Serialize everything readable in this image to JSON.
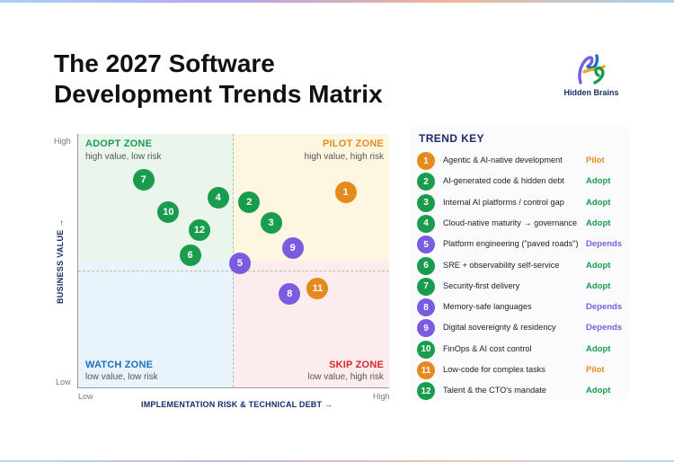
{
  "colors": {
    "adopt": "#1a9c4e",
    "pilot": "#e58a1f",
    "depends": "#7b5ce0",
    "navy": "#1b2a6b",
    "watch": "#1a6fc0",
    "skip": "#d8262f"
  },
  "title": {
    "line1_prefix": "The ",
    "line1_bold": "2027 Software",
    "line2_bold": "Development Trends",
    "line2_suffix": " Matrix"
  },
  "logo": {
    "text": "Hidden Brains"
  },
  "chart_data": {
    "type": "scatter",
    "xlabel": "IMPLEMENTATION RISK & TECHNICAL DEBT →",
    "ylabel": "BUSINESS VALUE →",
    "x_ticks": {
      "low": "Low",
      "high": "High"
    },
    "y_ticks": {
      "low": "Low",
      "high": "High"
    },
    "xlim": [
      0,
      100
    ],
    "ylim": [
      0,
      100
    ],
    "quadrants": {
      "adopt": {
        "title": "ADOPT ZONE",
        "subtitle": "high value, low risk"
      },
      "pilot": {
        "title": "PILOT ZONE",
        "subtitle": "high value, high risk"
      },
      "watch": {
        "title": "WATCH ZONE",
        "subtitle": "low value, low risk"
      },
      "skip": {
        "title": "SKIP ZONE",
        "subtitle": "low value, high risk"
      }
    },
    "points": [
      {
        "id": "1",
        "x": 86,
        "y": 77,
        "category": "pilot"
      },
      {
        "id": "2",
        "x": 55,
        "y": 73,
        "category": "adopt"
      },
      {
        "id": "3",
        "x": 62,
        "y": 65,
        "category": "adopt"
      },
      {
        "id": "4",
        "x": 45,
        "y": 75,
        "category": "adopt"
      },
      {
        "id": "5",
        "x": 52,
        "y": 49,
        "category": "depends"
      },
      {
        "id": "6",
        "x": 36,
        "y": 52,
        "category": "adopt"
      },
      {
        "id": "7",
        "x": 21,
        "y": 82,
        "category": "adopt"
      },
      {
        "id": "8",
        "x": 68,
        "y": 37,
        "category": "depends"
      },
      {
        "id": "9",
        "x": 69,
        "y": 55,
        "category": "depends"
      },
      {
        "id": "10",
        "x": 29,
        "y": 69,
        "category": "adopt"
      },
      {
        "id": "11",
        "x": 77,
        "y": 39,
        "category": "pilot"
      },
      {
        "id": "12",
        "x": 39,
        "y": 62,
        "category": "adopt"
      }
    ]
  },
  "trend_key": {
    "title": "TREND KEY",
    "items": [
      {
        "num": "1",
        "label": "Agentic & AI-native development",
        "status": "Pilot",
        "category": "pilot"
      },
      {
        "num": "2",
        "label": "AI-generated code & hidden debt",
        "status": "Adopt",
        "category": "adopt"
      },
      {
        "num": "3",
        "label": "Internal AI platforms / control gap",
        "status": "Adopt",
        "category": "adopt"
      },
      {
        "num": "4",
        "label": "Cloud-native maturity → governance",
        "status": "Adopt",
        "category": "adopt"
      },
      {
        "num": "5",
        "label": "Platform engineering (\"paved roads\")",
        "status": "Depends",
        "category": "depends"
      },
      {
        "num": "6",
        "label": "SRE + observability self-service",
        "status": "Adopt",
        "category": "adopt"
      },
      {
        "num": "7",
        "label": "Security-first delivery",
        "status": "Adopt",
        "category": "adopt"
      },
      {
        "num": "8",
        "label": "Memory-safe languages",
        "status": "Depends",
        "category": "depends"
      },
      {
        "num": "9",
        "label": "Digital sovereignty & residency",
        "status": "Depends",
        "category": "depends"
      },
      {
        "num": "10",
        "label": "FinOps & AI cost control",
        "status": "Adopt",
        "category": "adopt"
      },
      {
        "num": "11",
        "label": "Low-code for complex tasks",
        "status": "Pilot",
        "category": "pilot"
      },
      {
        "num": "12",
        "label": "Talent & the CTO's mandate",
        "status": "Adopt",
        "category": "adopt"
      }
    ]
  }
}
